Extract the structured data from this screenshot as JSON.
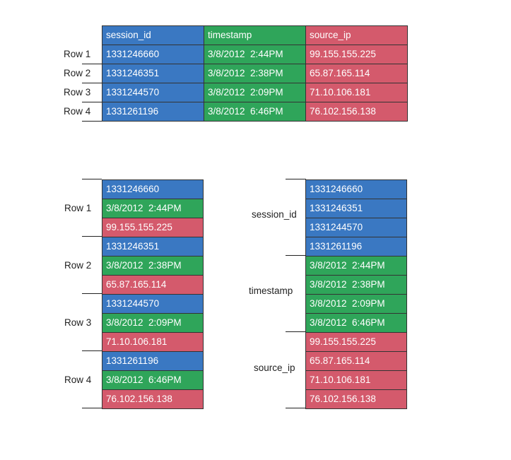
{
  "colors": {
    "session_id": "#3a78c2",
    "timestamp": "#2fa55a",
    "source_ip": "#d45a6c"
  },
  "top_table": {
    "headers": [
      "session_id",
      "timestamp",
      "source_ip"
    ],
    "rows": [
      {
        "label": "Row 1",
        "session_id": "1331246660",
        "timestamp": "3/8/2012  2:44PM",
        "source_ip": "99.155.155.225"
      },
      {
        "label": "Row 2",
        "session_id": "1331246351",
        "timestamp": "3/8/2012  2:38PM",
        "source_ip": "65.87.165.114"
      },
      {
        "label": "Row 3",
        "session_id": "1331244570",
        "timestamp": "3/8/2012  2:09PM",
        "source_ip": "71.10.106.181"
      },
      {
        "label": "Row 4",
        "session_id": "1331261196",
        "timestamp": "3/8/2012  6:46PM",
        "source_ip": "76.102.156.138"
      }
    ]
  },
  "row_oriented": {
    "groups": [
      {
        "label": "Row 1",
        "values": [
          "1331246660",
          "3/8/2012  2:44PM",
          "99.155.155.225"
        ]
      },
      {
        "label": "Row 2",
        "values": [
          "1331246351",
          "3/8/2012  2:38PM",
          "65.87.165.114"
        ]
      },
      {
        "label": "Row 3",
        "values": [
          "1331244570",
          "3/8/2012  2:09PM",
          "71.10.106.181"
        ]
      },
      {
        "label": "Row 4",
        "values": [
          "1331261196",
          "3/8/2012  6:46PM",
          "76.102.156.138"
        ]
      }
    ]
  },
  "column_oriented": {
    "groups": [
      {
        "label": "session_id",
        "values": [
          "1331246660",
          "1331246351",
          "1331244570",
          "1331261196"
        ]
      },
      {
        "label": "timestamp",
        "values": [
          "3/8/2012  2:44PM",
          "3/8/2012  2:38PM",
          "3/8/2012  2:09PM",
          "3/8/2012  6:46PM"
        ]
      },
      {
        "label": "source_ip",
        "values": [
          "99.155.155.225",
          "65.87.165.114",
          "71.10.106.181",
          "76.102.156.138"
        ]
      }
    ]
  }
}
